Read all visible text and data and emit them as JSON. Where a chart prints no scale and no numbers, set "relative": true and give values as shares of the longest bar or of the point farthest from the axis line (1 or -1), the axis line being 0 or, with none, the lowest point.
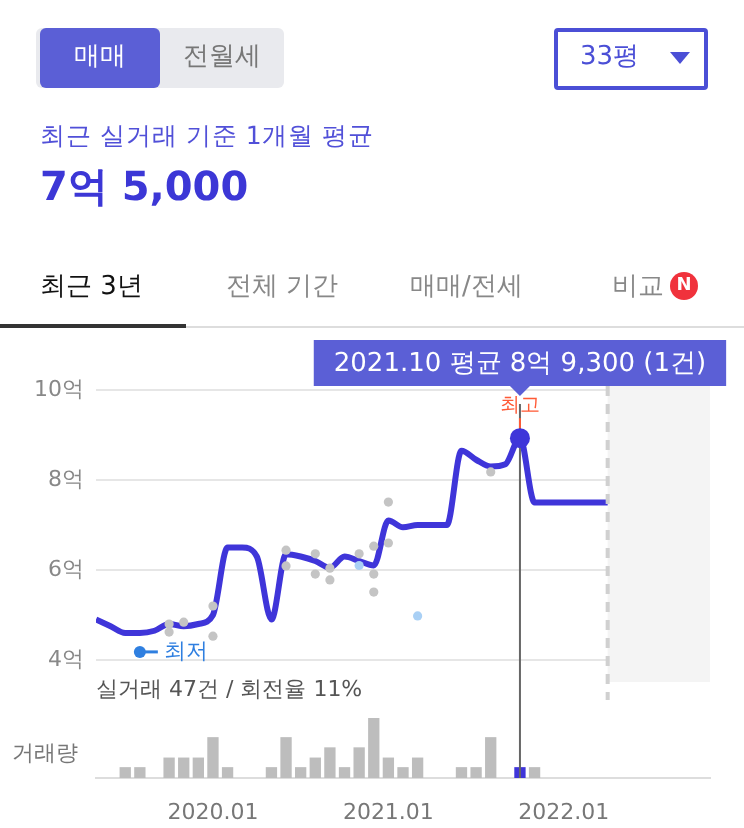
{
  "chart_data": [
    {
      "type": "other",
      "annotations": [
        "매매",
        "전월세",
        "33평",
        "최근 실거래 기준 1개월 평균",
        "7억 5,000",
        "최근 3년",
        "전체 기간",
        "매매/전세",
        "비교",
        "N"
      ]
    },
    {
      "type": "line",
      "x": [
        "2019-05",
        "2019-06",
        "2019-07",
        "2019-08",
        "2019-09",
        "2019-10",
        "2019-11",
        "2019-12",
        "2020-01",
        "2020-02",
        "2020-03",
        "2020-04",
        "2020-05",
        "2020-06",
        "2020-07",
        "2020-08",
        "2020-09",
        "2020-10",
        "2020-11",
        "2020-12",
        "2021-01",
        "2021-02",
        "2021-03",
        "2021-04",
        "2021-05",
        "2021-06",
        "2021-07",
        "2021-08",
        "2021-09",
        "2021-10",
        "2021-11",
        "2021-12",
        "2022-01",
        "2022-02",
        "2022-03",
        "2022-04"
      ],
      "series": [
        {
          "type": "line",
          "marker": "none",
          "color": "#3f35d9",
          "values": [
            4.9,
            4.75,
            4.6,
            4.6,
            4.65,
            4.8,
            4.75,
            4.8,
            5.0,
            6.5,
            6.5,
            6.3,
            4.9,
            6.35,
            6.3,
            6.2,
            6.05,
            6.3,
            6.2,
            6.1,
            7.1,
            6.95,
            7.0,
            7.0,
            7.0,
            8.65,
            8.45,
            8.3,
            8.35,
            8.93,
            7.5,
            7.5,
            7.5,
            7.5,
            7.5,
            7.5
          ]
        },
        {
          "type": "scatter",
          "marker": "circle",
          "color": "#c4c4c4",
          "x": [
            "2019-10",
            "2019-10",
            "2019-11",
            "2020-01",
            "2020-01",
            "2020-06",
            "2020-06",
            "2020-08",
            "2020-08",
            "2020-09",
            "2020-09",
            "2020-11",
            "2020-12",
            "2020-12",
            "2020-12",
            "2021-01",
            "2021-01",
            "2021-08"
          ],
          "values": [
            4.8,
            4.62,
            4.84,
            5.2,
            4.53,
            6.44,
            6.09,
            6.36,
            5.91,
            6.04,
            5.78,
            6.36,
            6.53,
            5.91,
            5.51,
            7.51,
            6.6,
            8.18
          ]
        },
        {
          "type": "scatter",
          "marker": "circle",
          "color": "#a9d0f5",
          "x": [
            "2019-08",
            "2020-11",
            "2021-03"
          ],
          "values": [
            4.18,
            6.1,
            4.98
          ]
        }
      ],
      "xlim": [
        "2019-05",
        "2022-11"
      ],
      "ylim": [
        4,
        10
      ],
      "yticks": [
        {
          "value": 4,
          "label": "4억"
        },
        {
          "value": 6,
          "label": "6억"
        },
        {
          "value": 8,
          "label": "8억"
        },
        {
          "value": 10,
          "label": "10억"
        }
      ],
      "tick_labels": "y",
      "grid": "y",
      "legend": false,
      "ref_lines": [
        {
          "axis": "x",
          "value": "2021-10",
          "color": "#666666"
        },
        {
          "axis": "x",
          "value": "2022-04",
          "color": "#d0d0d0",
          "line_style": "dashed"
        }
      ],
      "bands": [
        {
          "axis": "x",
          "from": "2022-04",
          "to": "2022-11",
          "color": "#f4f4f4"
        }
      ],
      "annotations": [
        {
          "text": "2021.10 평균 8억 9,300 (1건)",
          "x": "2021-10",
          "y": 8.93
        },
        {
          "text": "최고",
          "x": "2021-10",
          "y": 8.93
        },
        {
          "text": "최저",
          "x": "2019-08",
          "y": 4.18
        },
        "실거래 47건 / 회전율 11%"
      ]
    },
    {
      "type": "bar",
      "relative": true,
      "ylabel": "거래량",
      "x": [
        "2019-07",
        "2019-08",
        "2019-10",
        "2019-11",
        "2019-12",
        "2020-01",
        "2020-02",
        "2020-05",
        "2020-06",
        "2020-07",
        "2020-08",
        "2020-09",
        "2020-10",
        "2020-11",
        "2020-12",
        "2021-01",
        "2021-02",
        "2021-03",
        "2021-06",
        "2021-07",
        "2021-08",
        "2021-10",
        "2021-11"
      ],
      "values": [
        0.17,
        0.17,
        0.33,
        0.33,
        0.33,
        0.67,
        0.17,
        0.17,
        0.67,
        0.17,
        0.33,
        0.5,
        0.17,
        0.5,
        1,
        0.33,
        0.17,
        0.33,
        0.17,
        0.17,
        0.67,
        0.17,
        0.17
      ],
      "colors": [
        "#bdbdbd",
        "#bdbdbd",
        "#bdbdbd",
        "#bdbdbd",
        "#bdbdbd",
        "#bdbdbd",
        "#bdbdbd",
        "#bdbdbd",
        "#bdbdbd",
        "#bdbdbd",
        "#bdbdbd",
        "#bdbdbd",
        "#bdbdbd",
        "#bdbdbd",
        "#bdbdbd",
        "#bdbdbd",
        "#bdbdbd",
        "#bdbdbd",
        "#bdbdbd",
        "#bdbdbd",
        "#bdbdbd",
        "#3f35d9",
        "#bdbdbd"
      ],
      "xlim": [
        "2019-05",
        "2022-11"
      ],
      "xticks": [
        {
          "value": "2020-01",
          "label": "2020.01"
        },
        {
          "value": "2021-01",
          "label": "2021.01"
        },
        {
          "value": "2022-01",
          "label": "2022.01"
        }
      ],
      "tick_labels": "x",
      "legend": false,
      "ref_lines": [
        {
          "axis": "x",
          "value": "2021-10",
          "color": "#666666"
        }
      ]
    }
  ]
}
